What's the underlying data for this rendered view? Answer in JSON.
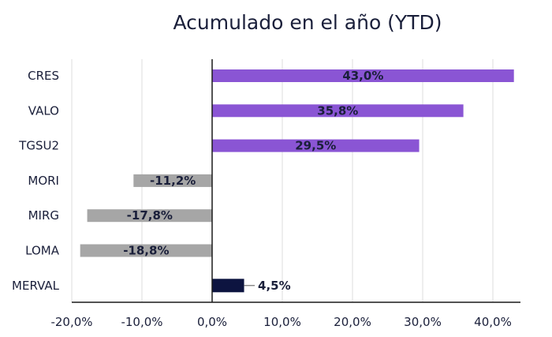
{
  "chart_data": {
    "type": "bar",
    "orientation": "horizontal",
    "title": "Acumulado en el año (YTD)",
    "categories": [
      "CRES",
      "VALO",
      "TGSU2",
      "MORI",
      "MIRG",
      "LOMA",
      "MERVAL"
    ],
    "values": [
      43.0,
      35.8,
      29.5,
      -11.2,
      -17.8,
      -18.8,
      4.5
    ],
    "data_labels": [
      "43,0%",
      "35,8%",
      "29,5%",
      "-11,2%",
      "-17,8%",
      "-18,8%",
      "4,5%"
    ],
    "bar_colors": [
      "#8a55d4",
      "#8a55d4",
      "#8a55d4",
      "#a6a6a6",
      "#a6a6a6",
      "#a6a6a6",
      "#0d1440"
    ],
    "xlim": [
      -20,
      43
    ],
    "x_ticks": [
      -20,
      -10,
      0,
      10,
      20,
      30,
      40
    ],
    "x_tick_labels": [
      "-20,0%",
      "-10,0%",
      "0,0%",
      "10,0%",
      "20,0%",
      "30,0%",
      "40,0%"
    ],
    "grid": "vertical",
    "legend": "none",
    "xlabel": "",
    "ylabel": ""
  }
}
